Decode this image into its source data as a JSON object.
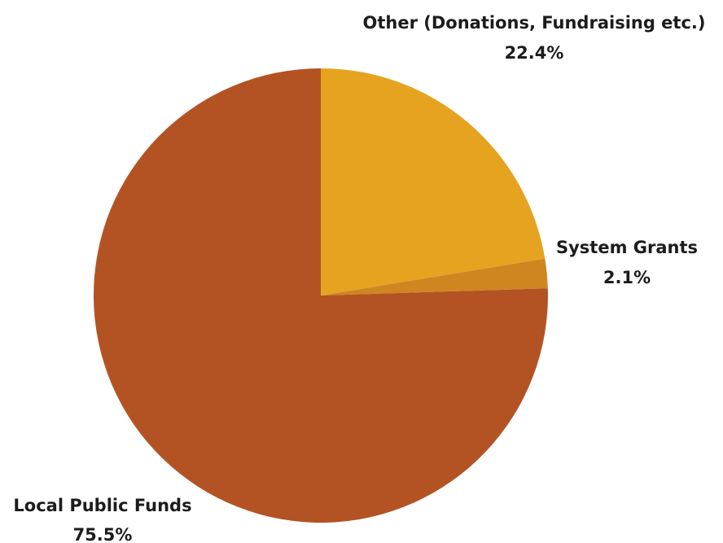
{
  "chart_data": {
    "type": "pie",
    "title": "",
    "start_angle_deg": 0,
    "direction": "clockwise",
    "slices": [
      {
        "label": "Other (Donations, Fundraising etc.)",
        "value": 22.4,
        "value_label": "22.4%",
        "color": "#E5A320"
      },
      {
        "label": "System Grants",
        "value": 2.1,
        "value_label": "2.1%",
        "color": "#CF8621"
      },
      {
        "label": "Local Public Funds",
        "value": 75.5,
        "value_label": "75.5%",
        "color": "#B35323"
      }
    ],
    "legend": "none",
    "label_placement": "outside"
  }
}
